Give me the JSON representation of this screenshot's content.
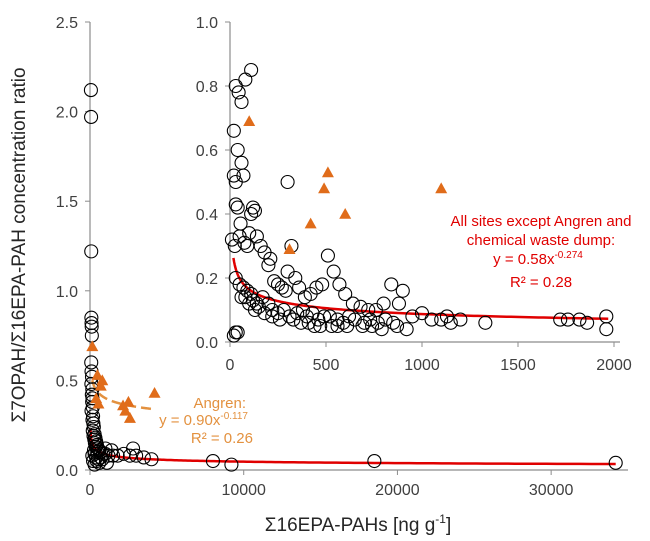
{
  "chart_data": [
    {
      "id": "main",
      "type": "scatter",
      "xlabel": "Σ16EPA-PAHs [ng g",
      "xlabel_sup": "-1",
      "xlabel_end": "]",
      "ylabel": "Σ7OPAH/Σ16EPA-PAH concentration ratio",
      "xlim": [
        0,
        35000
      ],
      "ylim": [
        0,
        2.5
      ],
      "x_ticks": [
        0,
        10000,
        20000,
        30000
      ],
      "y_ticks": [
        0.0,
        0.5,
        1.0,
        1.5,
        2.0,
        2.5
      ],
      "x_tick_labels": [
        "0",
        "10000",
        "20000",
        "30000"
      ],
      "y_tick_labels": [
        "0.0",
        "0.5",
        "1.0",
        "1.5",
        "2.0",
        "2.5"
      ],
      "grid": false,
      "series": [
        {
          "marker": "open-circle",
          "color": "#000000",
          "points": [
            [
              60,
              2.12
            ],
            [
              70,
              1.97
            ],
            [
              80,
              1.22
            ],
            [
              90,
              0.85
            ],
            [
              100,
              0.82
            ],
            [
              110,
              0.8
            ],
            [
              120,
              0.75
            ],
            [
              80,
              0.6
            ],
            [
              100,
              0.55
            ],
            [
              130,
              0.52
            ],
            [
              90,
              0.48
            ],
            [
              150,
              0.45
            ],
            [
              120,
              0.42
            ],
            [
              160,
              0.4
            ],
            [
              140,
              0.38
            ],
            [
              180,
              0.35
            ],
            [
              100,
              0.33
            ],
            [
              200,
              0.3
            ],
            [
              160,
              0.28
            ],
            [
              220,
              0.26
            ],
            [
              250,
              0.24
            ],
            [
              180,
              0.22
            ],
            [
              300,
              0.2
            ],
            [
              230,
              0.19
            ],
            [
              350,
              0.18
            ],
            [
              280,
              0.17
            ],
            [
              400,
              0.16
            ],
            [
              320,
              0.15
            ],
            [
              450,
              0.14
            ],
            [
              380,
              0.13
            ],
            [
              520,
              0.12
            ],
            [
              600,
              0.11
            ],
            [
              480,
              0.1
            ],
            [
              700,
              0.1
            ],
            [
              850,
              0.09
            ],
            [
              1000,
              0.09
            ],
            [
              1200,
              0.08
            ],
            [
              1500,
              0.08
            ],
            [
              1800,
              0.08
            ],
            [
              2200,
              0.09
            ],
            [
              2600,
              0.08
            ],
            [
              3000,
              0.08
            ],
            [
              3500,
              0.07
            ],
            [
              4000,
              0.06
            ],
            [
              2800,
              0.12
            ],
            [
              1400,
              0.11
            ],
            [
              1000,
              0.12
            ],
            [
              700,
              0.07
            ],
            [
              550,
              0.06
            ],
            [
              400,
              0.07
            ],
            [
              300,
              0.09
            ],
            [
              260,
              0.11
            ],
            [
              150,
              0.08
            ],
            [
              200,
              0.05
            ],
            [
              450,
              0.05
            ],
            [
              800,
              0.06
            ],
            [
              600,
              0.04
            ],
            [
              300,
              0.03
            ],
            [
              1100,
              0.04
            ],
            [
              8000,
              0.05
            ],
            [
              9200,
              0.03
            ],
            [
              18500,
              0.05
            ],
            [
              34200,
              0.04
            ]
          ]
        },
        {
          "marker": "filled-triangle",
          "color": "#e06c1a",
          "points": [
            [
              150,
              0.69
            ],
            [
              480,
              0.53
            ],
            [
              700,
              0.47
            ],
            [
              800,
              0.5
            ],
            [
              400,
              0.4
            ],
            [
              550,
              0.37
            ],
            [
              2150,
              0.36
            ],
            [
              2300,
              0.33
            ],
            [
              2600,
              0.29
            ],
            [
              2500,
              0.38
            ],
            [
              4200,
              0.43
            ]
          ]
        }
      ],
      "fit_lines": [
        {
          "color": "#e00000",
          "a": 0.58,
          "b": -0.274,
          "x_range": [
            28,
            34200
          ]
        },
        {
          "color": "#e3913f",
          "dashed": true,
          "a": 0.9,
          "b": -0.117,
          "x_range": [
            150,
            4200
          ]
        }
      ],
      "annotations": [
        {
          "color": "orange",
          "lines": [
            "Angren:",
            "y = 0.90x",
            "R² = 0.26"
          ],
          "exponent": "-0.117"
        }
      ]
    },
    {
      "id": "inset",
      "type": "scatter",
      "xlim": [
        0,
        2000
      ],
      "ylim": [
        0,
        1.0
      ],
      "x_ticks": [
        0,
        500,
        1000,
        1500,
        2000
      ],
      "y_ticks": [
        0.0,
        0.2,
        0.4,
        0.6,
        0.8,
        1.0
      ],
      "x_tick_labels": [
        "0",
        "500",
        "1000",
        "1500",
        "2000"
      ],
      "y_tick_labels": [
        "0.0",
        "0.2",
        "0.4",
        "0.6",
        "0.8",
        "1.0"
      ],
      "grid": false,
      "series": [
        {
          "marker": "open-circle",
          "color": "#000000",
          "points": [
            [
              30,
              0.8
            ],
            [
              45,
              0.78
            ],
            [
              60,
              0.75
            ],
            [
              80,
              0.82
            ],
            [
              110,
              0.85
            ],
            [
              20,
              0.66
            ],
            [
              40,
              0.6
            ],
            [
              60,
              0.56
            ],
            [
              70,
              0.52
            ],
            [
              20,
              0.52
            ],
            [
              30,
              0.5
            ],
            [
              30,
              0.43
            ],
            [
              10,
              0.32
            ],
            [
              25,
              0.3
            ],
            [
              40,
              0.42
            ],
            [
              55,
              0.37
            ],
            [
              50,
              0.33
            ],
            [
              75,
              0.31
            ],
            [
              90,
              0.3
            ],
            [
              100,
              0.34
            ],
            [
              110,
              0.4
            ],
            [
              120,
              0.42
            ],
            [
              130,
              0.41
            ],
            [
              140,
              0.33
            ],
            [
              160,
              0.3
            ],
            [
              180,
              0.28
            ],
            [
              200,
              0.24
            ],
            [
              210,
              0.26
            ],
            [
              230,
              0.19
            ],
            [
              250,
              0.18
            ],
            [
              270,
              0.17
            ],
            [
              290,
              0.16
            ],
            [
              300,
              0.5
            ],
            [
              320,
              0.3
            ],
            [
              300,
              0.22
            ],
            [
              340,
              0.2
            ],
            [
              360,
              0.17
            ],
            [
              390,
              0.14
            ],
            [
              420,
              0.15
            ],
            [
              450,
              0.17
            ],
            [
              480,
              0.18
            ],
            [
              510,
              0.27
            ],
            [
              540,
              0.22
            ],
            [
              570,
              0.18
            ],
            [
              600,
              0.15
            ],
            [
              640,
              0.12
            ],
            [
              680,
              0.11
            ],
            [
              720,
              0.1
            ],
            [
              760,
              0.1
            ],
            [
              800,
              0.12
            ],
            [
              840,
              0.18
            ],
            [
              880,
              0.12
            ],
            [
              900,
              0.16
            ],
            [
              950,
              0.08
            ],
            [
              1000,
              0.09
            ],
            [
              1050,
              0.07
            ],
            [
              1100,
              0.07
            ],
            [
              1130,
              0.08
            ],
            [
              1150,
              0.06
            ],
            [
              1200,
              0.07
            ],
            [
              1330,
              0.06
            ],
            [
              1720,
              0.07
            ],
            [
              1760,
              0.07
            ],
            [
              1820,
              0.07
            ],
            [
              1860,
              0.06
            ],
            [
              1960,
              0.08
            ],
            [
              1960,
              0.04
            ],
            [
              30,
              0.2
            ],
            [
              50,
              0.18
            ],
            [
              70,
              0.17
            ],
            [
              90,
              0.16
            ],
            [
              110,
              0.15
            ],
            [
              120,
              0.13
            ],
            [
              140,
              0.12
            ],
            [
              150,
              0.11
            ],
            [
              170,
              0.14
            ],
            [
              200,
              0.12
            ],
            [
              220,
              0.1
            ],
            [
              250,
              0.09
            ],
            [
              280,
              0.1
            ],
            [
              310,
              0.08
            ],
            [
              350,
              0.09
            ],
            [
              380,
              0.1
            ],
            [
              400,
              0.08
            ],
            [
              430,
              0.09
            ],
            [
              460,
              0.07
            ],
            [
              490,
              0.08
            ],
            [
              520,
              0.08
            ],
            [
              560,
              0.07
            ],
            [
              590,
              0.06
            ],
            [
              620,
              0.08
            ],
            [
              650,
              0.07
            ],
            [
              700,
              0.06
            ],
            [
              730,
              0.07
            ],
            [
              770,
              0.06
            ],
            [
              810,
              0.07
            ],
            [
              850,
              0.06
            ],
            [
              20,
              0.02
            ],
            [
              30,
              0.03
            ],
            [
              40,
              0.03
            ],
            [
              60,
              0.14
            ],
            [
              80,
              0.14
            ],
            [
              100,
              0.12
            ],
            [
              130,
              0.1
            ],
            [
              180,
              0.09
            ],
            [
              220,
              0.08
            ],
            [
              260,
              0.07
            ],
            [
              330,
              0.07
            ],
            [
              370,
              0.06
            ],
            [
              410,
              0.06
            ],
            [
              440,
              0.05
            ],
            [
              470,
              0.05
            ],
            [
              530,
              0.05
            ],
            [
              560,
              0.05
            ],
            [
              610,
              0.05
            ],
            [
              690,
              0.05
            ],
            [
              740,
              0.05
            ],
            [
              790,
              0.04
            ],
            [
              870,
              0.05
            ],
            [
              920,
              0.04
            ]
          ]
        },
        {
          "marker": "filled-triangle",
          "color": "#e06c1a",
          "points": [
            [
              100,
              0.69
            ],
            [
              310,
              0.29
            ],
            [
              420,
              0.37
            ],
            [
              490,
              0.48
            ],
            [
              510,
              0.53
            ],
            [
              600,
              0.4
            ],
            [
              1100,
              0.48
            ]
          ]
        }
      ],
      "fit_lines": [
        {
          "color": "#e00000",
          "a": 0.58,
          "b": -0.274,
          "x_range": [
            18,
            1970
          ]
        }
      ],
      "annotations": [
        {
          "color": "red",
          "lines": [
            "All sites except Angren and",
            "chemical waste dump:",
            "y = 0.58x",
            "R² = 0.28"
          ],
          "exponent": "-0.274"
        }
      ]
    }
  ]
}
